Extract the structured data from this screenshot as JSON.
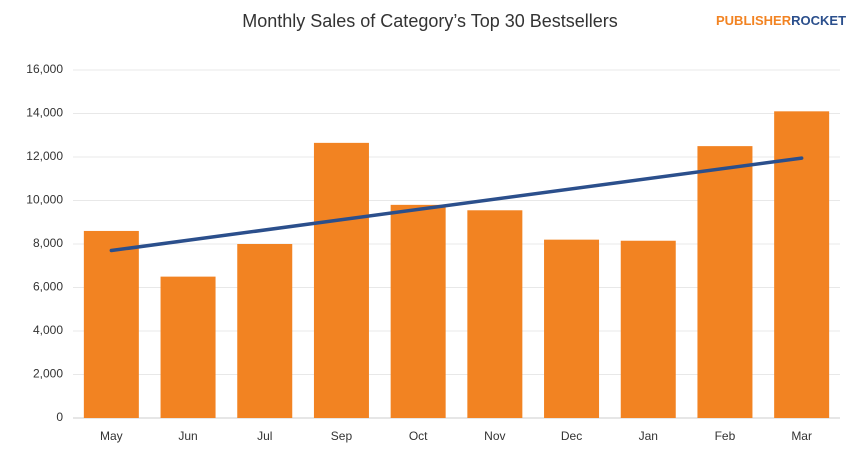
{
  "chart_data": {
    "type": "bar",
    "title": "Monthly Sales of Category’s Top 30 Bestsellers",
    "logo": {
      "part1": "PUBLISHER",
      "part2": "ROCKET"
    },
    "categories": [
      "May",
      "Jun",
      "Jul",
      "Sep",
      "Oct",
      "Nov",
      "Dec",
      "Jan",
      "Feb",
      "Mar"
    ],
    "values": [
      8600,
      6500,
      8000,
      12650,
      9800,
      9550,
      8200,
      8150,
      12500,
      14100
    ],
    "color": "#f28322",
    "trendline": {
      "start": 7700,
      "end": 11950,
      "color": "#2b4f8c"
    },
    "ylim": [
      0,
      16000
    ],
    "yticks": [
      0,
      {
        "value": 2000,
        "label": "2,000"
      },
      {
        "value": 4000,
        "label": "4,000"
      },
      {
        "value": 6000,
        "label": "6,000"
      },
      {
        "value": 8000,
        "label": "8,000"
      },
      {
        "value": 10000,
        "label": "10,000"
      },
      {
        "value": 12000,
        "label": "12,000"
      },
      {
        "value": 14000,
        "label": "14,000"
      },
      {
        "value": 16000,
        "label": "16,000"
      }
    ],
    "grid": true
  }
}
